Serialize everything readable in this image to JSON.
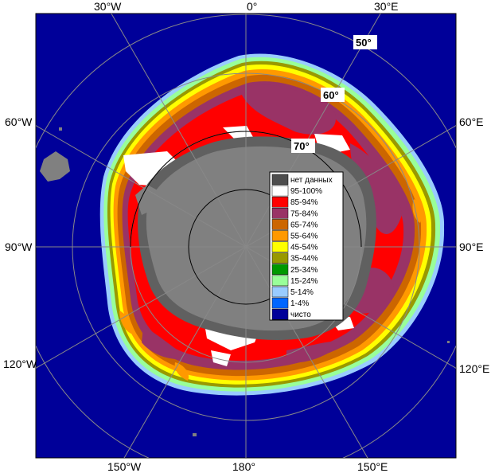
{
  "map": {
    "lon_labels": {
      "w30": "30°W",
      "zero": "0°",
      "e30": "30°E",
      "w60": "60°W",
      "e60": "60°E",
      "w90": "90°W",
      "e90": "90°E",
      "w120": "120°W",
      "e120": "120°E",
      "w150": "150°W",
      "e180": "180°",
      "e150": "150°E"
    },
    "lat_labels": {
      "lat50": "50°",
      "lat60": "60°",
      "lat70": "70°"
    }
  },
  "legend": {
    "items": [
      {
        "label": "нет данных",
        "color": "#4d4d4d"
      },
      {
        "label": "95-100%",
        "color": "#ffffff"
      },
      {
        "label": "85-94%",
        "color": "#ff0000"
      },
      {
        "label": "75-84%",
        "color": "#993366"
      },
      {
        "label": "65-74%",
        "color": "#cc6600"
      },
      {
        "label": "55-64%",
        "color": "#ff9900"
      },
      {
        "label": "45-54%",
        "color": "#ffff00"
      },
      {
        "label": "35-44%",
        "color": "#999900"
      },
      {
        "label": "25-34%",
        "color": "#009900"
      },
      {
        "label": "15-24%",
        "color": "#99ff99"
      },
      {
        "label": "5-14%",
        "color": "#99ccff"
      },
      {
        "label": "1-4%",
        "color": "#0066ff"
      },
      {
        "label": "чисто",
        "color": "#000099"
      }
    ]
  },
  "colors": {
    "ocean": "#000099",
    "land": "#808080",
    "ice_shelf": "#606060",
    "grid": "#888888",
    "frame": "#000000"
  }
}
